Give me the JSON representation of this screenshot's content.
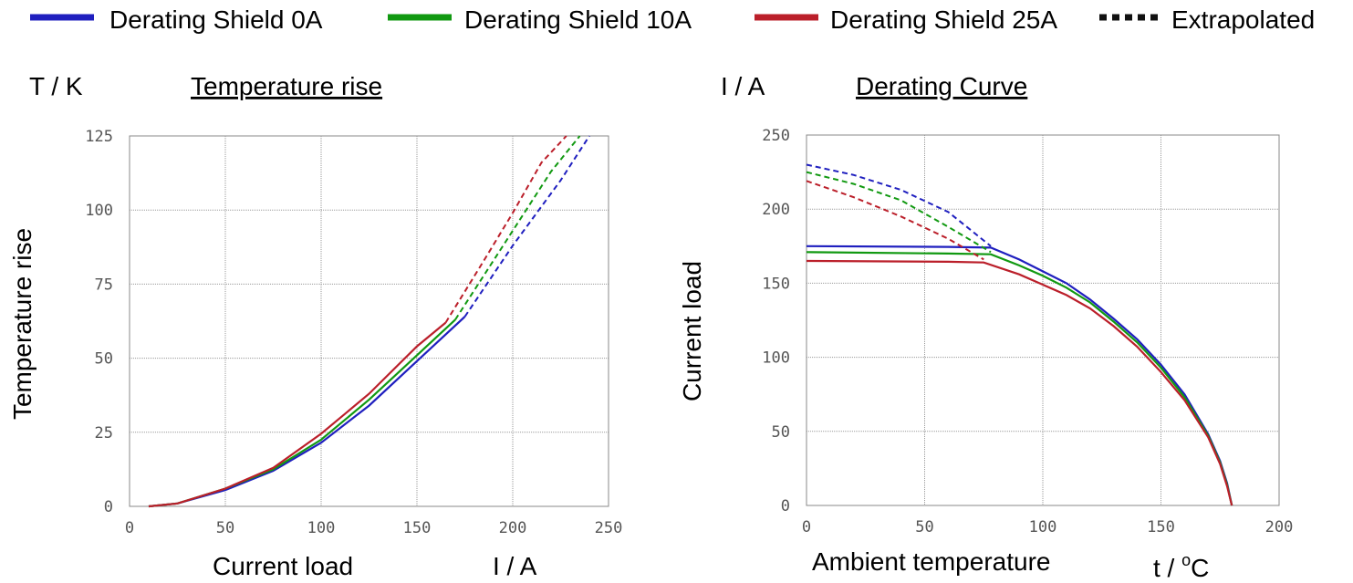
{
  "legend": {
    "items": [
      {
        "label": "Derating Shield 0A",
        "color": "#1f1fbf",
        "style": "solid"
      },
      {
        "label": "Derating Shield 10A",
        "color": "#119911",
        "style": "solid"
      },
      {
        "label": "Derating Shield 25A",
        "color": "#bb1f2a",
        "style": "solid"
      },
      {
        "label": "Extrapolated",
        "color": "#111111",
        "style": "dashed"
      }
    ]
  },
  "chart_data": [
    {
      "type": "line",
      "title": "Temperature rise",
      "unit_label": "T / K",
      "xlabel": "Current load",
      "xunit": "I / A",
      "ylabel": "Temperature rise",
      "xlim": [
        0,
        250
      ],
      "ylim": [
        0,
        125
      ],
      "xticks": [
        0,
        50,
        100,
        150,
        200,
        250
      ],
      "yticks": [
        0,
        25,
        50,
        75,
        100,
        125
      ],
      "grid": true,
      "series": [
        {
          "name": "Derating Shield 0A",
          "color": "#1f1fbf",
          "solid": [
            [
              10,
              0
            ],
            [
              25,
              1
            ],
            [
              50,
              5.5
            ],
            [
              75,
              12
            ],
            [
              100,
              21.5
            ],
            [
              125,
              34
            ],
            [
              150,
              49
            ],
            [
              175,
              64
            ]
          ],
          "extrapolated": [
            [
              175,
              64
            ],
            [
              200,
              88
            ],
            [
              225,
              110
            ],
            [
              240,
              125
            ]
          ]
        },
        {
          "name": "Derating Shield 10A",
          "color": "#119911",
          "solid": [
            [
              10,
              0
            ],
            [
              25,
              1
            ],
            [
              50,
              6
            ],
            [
              75,
              12.5
            ],
            [
              100,
              22.5
            ],
            [
              125,
              36
            ],
            [
              150,
              51
            ],
            [
              170,
              63
            ]
          ],
          "extrapolated": [
            [
              170,
              63
            ],
            [
              200,
              93
            ],
            [
              220,
              113
            ],
            [
              235,
              125
            ]
          ]
        },
        {
          "name": "Derating Shield 25A",
          "color": "#bb1f2a",
          "solid": [
            [
              10,
              0
            ],
            [
              25,
              1
            ],
            [
              50,
              6
            ],
            [
              75,
              13
            ],
            [
              100,
              24.5
            ],
            [
              125,
              38
            ],
            [
              150,
              54
            ],
            [
              165,
              62
            ]
          ],
          "extrapolated": [
            [
              165,
              62
            ],
            [
              185,
              83
            ],
            [
              200,
              99
            ],
            [
              215,
              116
            ],
            [
              228,
              125
            ]
          ]
        }
      ]
    },
    {
      "type": "line",
      "title": "Derating Curve",
      "unit_label": "I / A",
      "xlabel": "Ambient temperature",
      "xunit": "t / ",
      "xunit_sup": "o",
      "xunit_suffix": "C",
      "ylabel": "Current load",
      "xlim": [
        0,
        200
      ],
      "ylim": [
        0,
        250
      ],
      "xticks": [
        0,
        50,
        100,
        150,
        200
      ],
      "yticks": [
        0,
        50,
        100,
        150,
        200,
        250
      ],
      "grid": true,
      "series": [
        {
          "name": "Derating Shield 0A",
          "color": "#1f1fbf",
          "solid": [
            [
              0,
              175
            ],
            [
              60,
              174.5
            ],
            [
              78,
              174
            ],
            [
              90,
              166
            ],
            [
              100,
              158
            ],
            [
              110,
              150
            ],
            [
              120,
              139
            ],
            [
              130,
              126
            ],
            [
              140,
              112
            ],
            [
              150,
              95
            ],
            [
              160,
              75
            ],
            [
              170,
              48
            ],
            [
              175,
              30
            ],
            [
              178,
              15
            ],
            [
              180,
              0
            ]
          ],
          "extrapolated": [
            [
              0,
              230
            ],
            [
              20,
              223
            ],
            [
              40,
              213
            ],
            [
              60,
              198
            ],
            [
              78,
              175
            ]
          ]
        },
        {
          "name": "Derating Shield 10A",
          "color": "#119911",
          "solid": [
            [
              0,
              171
            ],
            [
              60,
              170
            ],
            [
              78,
              169.5
            ],
            [
              90,
              162
            ],
            [
              100,
              155
            ],
            [
              110,
              147
            ],
            [
              120,
              137
            ],
            [
              130,
              124
            ],
            [
              140,
              110
            ],
            [
              150,
              93
            ],
            [
              160,
              73
            ],
            [
              170,
              47
            ],
            [
              175,
              29
            ],
            [
              178,
              14
            ],
            [
              180,
              0
            ]
          ],
          "extrapolated": [
            [
              0,
              225
            ],
            [
              20,
              217
            ],
            [
              40,
              206
            ],
            [
              60,
              188
            ],
            [
              78,
              171
            ]
          ]
        },
        {
          "name": "Derating Shield 25A",
          "color": "#bb1f2a",
          "solid": [
            [
              0,
              165
            ],
            [
              60,
              164.5
            ],
            [
              75,
              164
            ],
            [
              90,
              156
            ],
            [
              100,
              149
            ],
            [
              110,
              142
            ],
            [
              120,
              133
            ],
            [
              130,
              121
            ],
            [
              140,
              107
            ],
            [
              150,
              90
            ],
            [
              160,
              71
            ],
            [
              170,
              46
            ],
            [
              175,
              28
            ],
            [
              178,
              13
            ],
            [
              180,
              0
            ]
          ],
          "extrapolated": [
            [
              0,
              219
            ],
            [
              20,
              208
            ],
            [
              40,
              195
            ],
            [
              60,
              180
            ],
            [
              75,
              166
            ]
          ]
        }
      ]
    }
  ]
}
